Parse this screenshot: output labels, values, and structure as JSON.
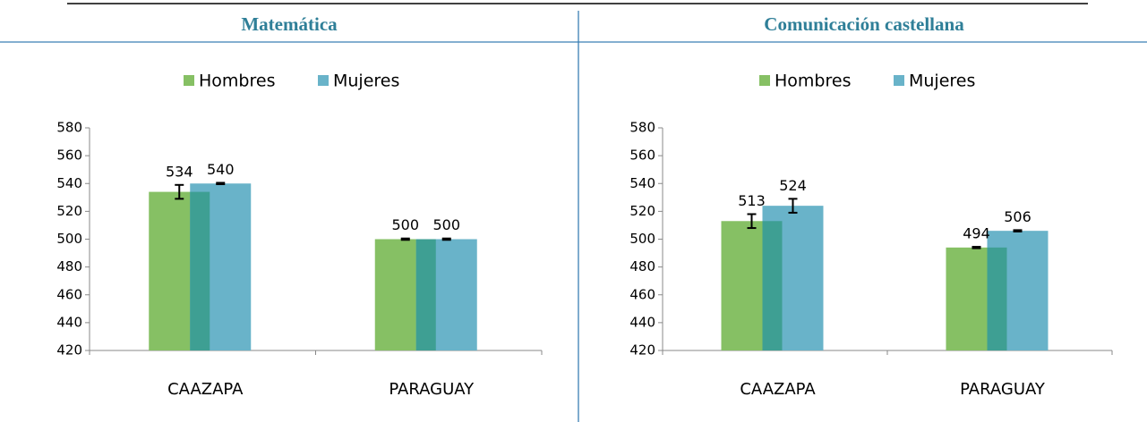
{
  "chart_data": [
    {
      "type": "bar",
      "title": "Matemática",
      "categories": [
        "CAAZAPA",
        "PARAGUAY"
      ],
      "series": [
        {
          "name": "Hombres",
          "color": "#86c064",
          "values": [
            534,
            500
          ],
          "errors": [
            5,
            0.5
          ]
        },
        {
          "name": "Mujeres",
          "color": "#69b3c9",
          "values": [
            540,
            500
          ],
          "errors": [
            0.5,
            0.5
          ]
        }
      ],
      "ylim": [
        420,
        580
      ],
      "yticks": [
        420,
        440,
        460,
        480,
        500,
        520,
        540,
        560,
        580
      ],
      "legend": "top"
    },
    {
      "type": "bar",
      "title": "Comunicación castellana",
      "categories": [
        "CAAZAPA",
        "PARAGUAY"
      ],
      "series": [
        {
          "name": "Hombres",
          "color": "#86c064",
          "values": [
            513,
            494
          ],
          "errors": [
            5,
            0.5
          ]
        },
        {
          "name": "Mujeres",
          "color": "#69b3c9",
          "values": [
            524,
            506
          ],
          "errors": [
            5,
            0.5
          ]
        }
      ],
      "ylim": [
        420,
        580
      ],
      "yticks": [
        420,
        440,
        460,
        480,
        500,
        520,
        540,
        560,
        580
      ],
      "legend": "top"
    }
  ]
}
